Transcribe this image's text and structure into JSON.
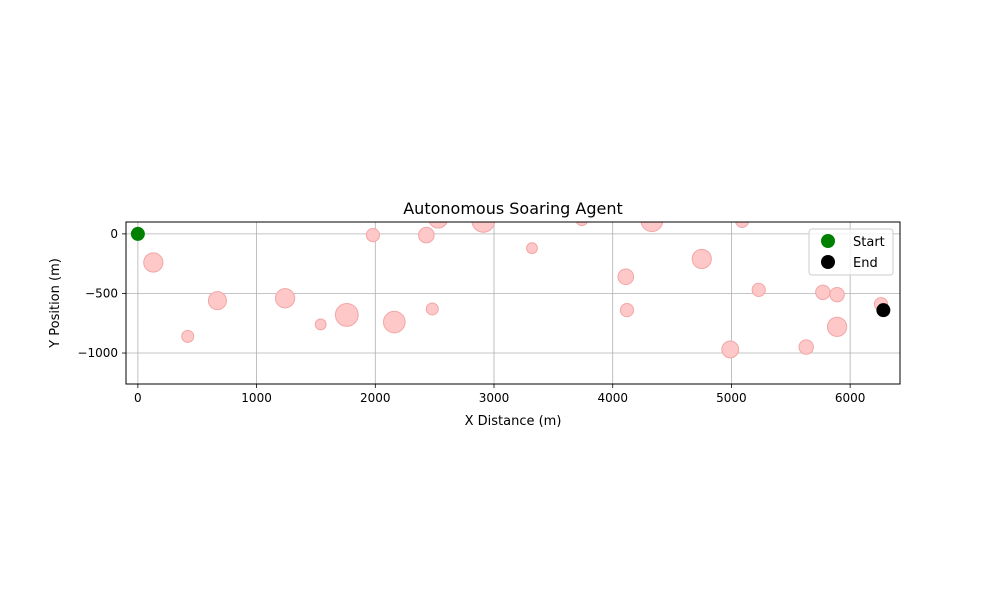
{
  "chart_data": {
    "type": "scatter",
    "title": "Autonomous Soaring Agent",
    "xlabel": "X Distance (m)",
    "ylabel": "Y Position (m)",
    "xlim": [
      -100,
      6420
    ],
    "ylim": [
      -1260,
      100
    ],
    "xticks": [
      0,
      1000,
      2000,
      3000,
      4000,
      5000,
      6000
    ],
    "yticks": [
      0,
      -500,
      -1000
    ],
    "grid": true,
    "legend": {
      "placement": "top-right",
      "entries": [
        "Start",
        "End"
      ]
    },
    "colors": {
      "thermal_fill": "#ffc8c8",
      "thermal_edge": "#f2a6a6",
      "start": "#008000",
      "end": "#000000",
      "grid": "#b0b0b0"
    },
    "series": [
      {
        "name": "",
        "kind": "thermals",
        "points": [
          {
            "x": 130,
            "y": -240,
            "strength": 1.6
          },
          {
            "x": 420,
            "y": -860,
            "strength": 1.0
          },
          {
            "x": 670,
            "y": -560,
            "strength": 1.5
          },
          {
            "x": 1240,
            "y": -540,
            "strength": 1.6
          },
          {
            "x": 1540,
            "y": -760,
            "strength": 0.9
          },
          {
            "x": 1760,
            "y": -680,
            "strength": 1.9
          },
          {
            "x": 1980,
            "y": -10,
            "strength": 1.1
          },
          {
            "x": 2160,
            "y": -740,
            "strength": 1.8
          },
          {
            "x": 2430,
            "y": -10,
            "strength": 1.3
          },
          {
            "x": 2480,
            "y": -630,
            "strength": 1.0
          },
          {
            "x": 2530,
            "y": 130,
            "strength": 1.6
          },
          {
            "x": 2910,
            "y": 110,
            "strength": 1.9
          },
          {
            "x": 3320,
            "y": -120,
            "strength": 0.9
          },
          {
            "x": 3740,
            "y": 120,
            "strength": 1.0
          },
          {
            "x": 4110,
            "y": -360,
            "strength": 1.3
          },
          {
            "x": 4120,
            "y": -640,
            "strength": 1.1
          },
          {
            "x": 4330,
            "y": 110,
            "strength": 1.8
          },
          {
            "x": 4750,
            "y": -210,
            "strength": 1.6
          },
          {
            "x": 4990,
            "y": -970,
            "strength": 1.4
          },
          {
            "x": 5090,
            "y": 110,
            "strength": 1.1
          },
          {
            "x": 5230,
            "y": -470,
            "strength": 1.1
          },
          {
            "x": 5630,
            "y": -950,
            "strength": 1.2
          },
          {
            "x": 5770,
            "y": -490,
            "strength": 1.2
          },
          {
            "x": 5890,
            "y": -510,
            "strength": 1.2
          },
          {
            "x": 5890,
            "y": -780,
            "strength": 1.6
          },
          {
            "x": 6260,
            "y": -590,
            "strength": 1.1
          }
        ]
      },
      {
        "name": "Start",
        "kind": "marker",
        "points": [
          {
            "x": 0,
            "y": 0
          }
        ]
      },
      {
        "name": "End",
        "kind": "marker",
        "points": [
          {
            "x": 6280,
            "y": -640
          }
        ]
      }
    ]
  }
}
